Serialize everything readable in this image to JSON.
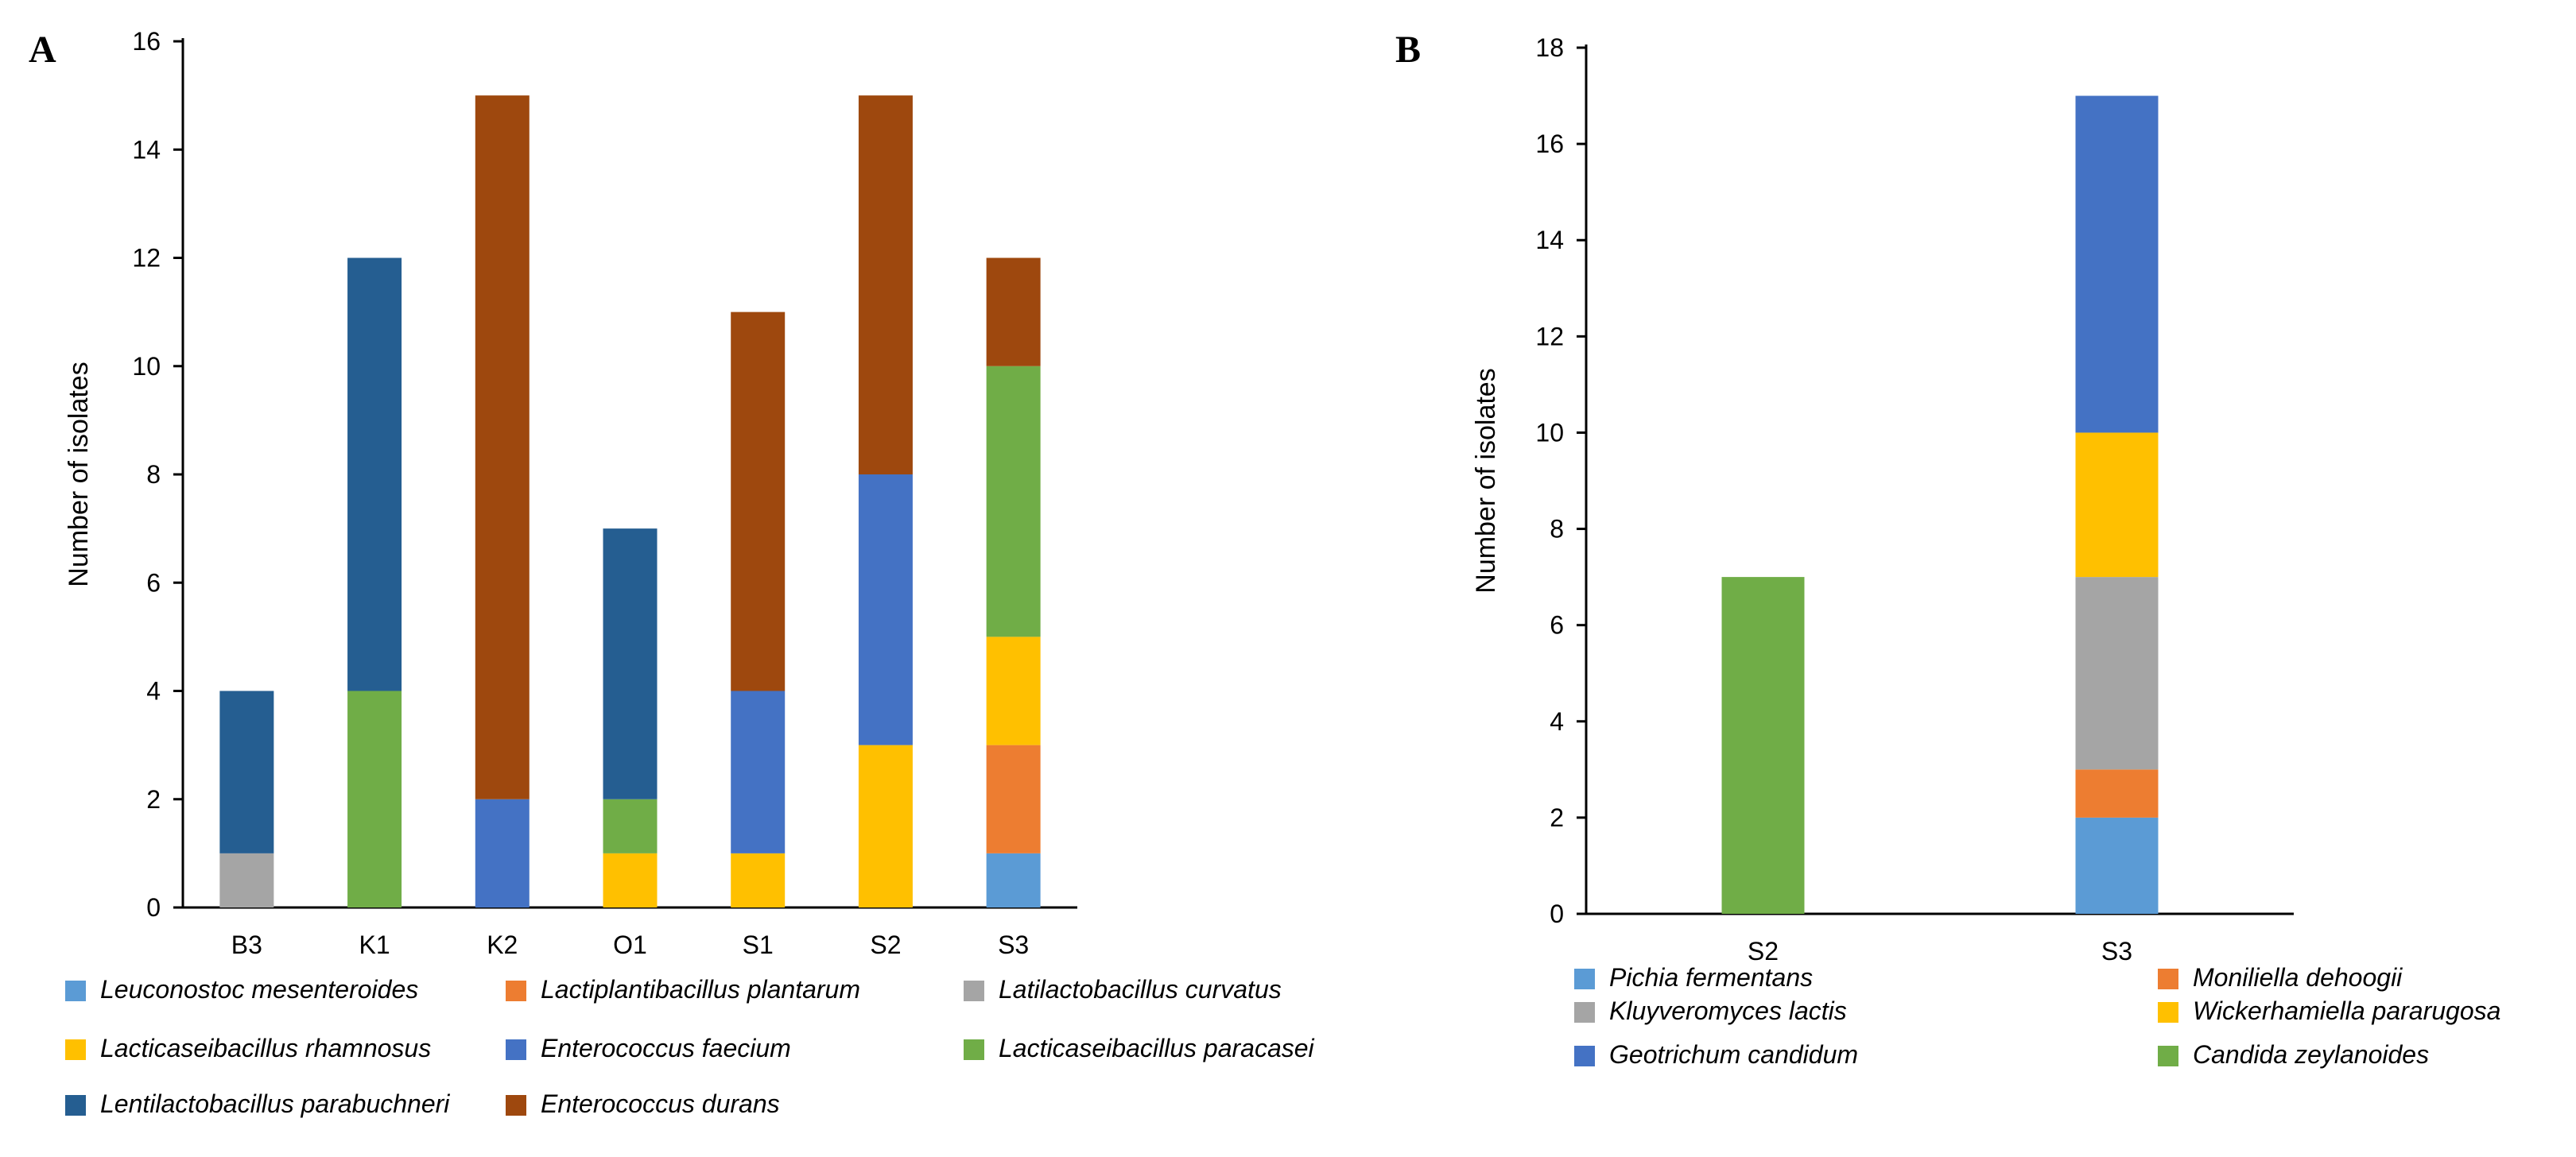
{
  "panels": {
    "a_letter": "A",
    "b_letter": "B"
  },
  "chart_data": [
    {
      "type": "bar",
      "stacked": true,
      "panel": "A",
      "title": "",
      "xlabel": "",
      "ylabel": "Number of isolates",
      "ylim": [
        0,
        16
      ],
      "yticks": [
        0,
        2,
        4,
        6,
        8,
        10,
        12,
        14,
        16
      ],
      "categories": [
        "B3",
        "K1",
        "K2",
        "O1",
        "S1",
        "S2",
        "S3"
      ],
      "series": [
        {
          "name": "Leuconostoc mesenteroides",
          "color": "#5B9BD5",
          "values": [
            0,
            0,
            0,
            0,
            0,
            0,
            1
          ]
        },
        {
          "name": "Lactiplantibacillus plantarum",
          "color": "#ED7D31",
          "values": [
            0,
            0,
            0,
            0,
            0,
            0,
            2
          ]
        },
        {
          "name": "Latilactobacillus curvatus",
          "color": "#A5A5A5",
          "values": [
            1,
            0,
            0,
            0,
            0,
            0,
            0
          ]
        },
        {
          "name": "Lacticaseibacillus rhamnosus",
          "color": "#FFC000",
          "values": [
            0,
            0,
            0,
            1,
            1,
            3,
            2
          ]
        },
        {
          "name": "Enterococcus faecium",
          "color": "#4472C4",
          "values": [
            0,
            0,
            2,
            0,
            3,
            5,
            0
          ]
        },
        {
          "name": "Lacticaseibacillus paracasei",
          "color": "#70AD47",
          "values": [
            0,
            4,
            0,
            1,
            0,
            0,
            5
          ]
        },
        {
          "name": "Lentilactobacillus parabuchneri",
          "color": "#255E91",
          "values": [
            3,
            8,
            0,
            5,
            0,
            0,
            0
          ]
        },
        {
          "name": "Enterococcus durans",
          "color": "#9E480E",
          "values": [
            0,
            0,
            13,
            0,
            7,
            7,
            2
          ]
        }
      ],
      "legend_position": "bottom"
    },
    {
      "type": "bar",
      "stacked": true,
      "panel": "B",
      "title": "",
      "xlabel": "",
      "ylabel": "Number of isolates",
      "ylim": [
        0,
        18
      ],
      "yticks": [
        0,
        2,
        4,
        6,
        8,
        10,
        12,
        14,
        16,
        18
      ],
      "categories": [
        "S2",
        "S3"
      ],
      "series": [
        {
          "name": "Pichia fermentans",
          "color": "#5B9BD5",
          "values": [
            0,
            2
          ]
        },
        {
          "name": "Moniliella dehoogii",
          "color": "#ED7D31",
          "values": [
            0,
            1
          ]
        },
        {
          "name": "Kluyveromyces lactis",
          "color": "#A5A5A5",
          "values": [
            0,
            4
          ]
        },
        {
          "name": "Wickerhamiella pararugosa",
          "color": "#FFC000",
          "values": [
            0,
            3
          ]
        },
        {
          "name": "Geotrichum candidum",
          "color": "#4472C4",
          "values": [
            0,
            7
          ]
        },
        {
          "name": "Candida zeylanoides",
          "color": "#70AD47",
          "values": [
            7,
            0
          ]
        }
      ],
      "legend_position": "bottom"
    }
  ]
}
